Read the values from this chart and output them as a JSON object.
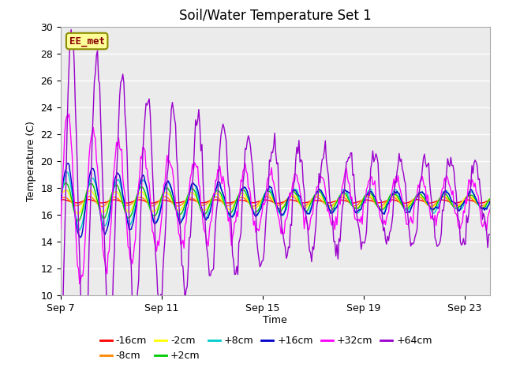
{
  "title": "Soil/Water Temperature Set 1",
  "xlabel": "Time",
  "ylabel": "Temperature (C)",
  "ylim": [
    10,
    30
  ],
  "xlim": [
    0,
    17
  ],
  "xtick_positions": [
    0,
    4,
    8,
    12,
    16
  ],
  "xtick_labels": [
    "Sep 7",
    "Sep 11",
    "Sep 15",
    "Sep 19",
    "Sep 23"
  ],
  "ytick_positions": [
    10,
    12,
    14,
    16,
    18,
    20,
    22,
    24,
    26,
    28,
    30
  ],
  "plot_bg_color": "#ebebeb",
  "fig_bg_color": "#ffffff",
  "annotation_text": "EE_met",
  "annotation_color": "#8b0000",
  "annotation_bg": "#ffff99",
  "annotation_edge": "#8b8b00",
  "legend_entries": [
    {
      "label": "-16cm",
      "color": "#ff0000"
    },
    {
      "label": "-8cm",
      "color": "#ff8800"
    },
    {
      "label": "-2cm",
      "color": "#ffff00"
    },
    {
      "label": "+2cm",
      "color": "#00cc00"
    },
    {
      "label": "+8cm",
      "color": "#00cccc"
    },
    {
      "label": "+16cm",
      "color": "#0000cc"
    },
    {
      "label": "+32cm",
      "color": "#ff00ff"
    },
    {
      "label": "+64cm",
      "color": "#9900cc"
    }
  ],
  "grid_color": "#ffffff",
  "linewidth": 1.0
}
